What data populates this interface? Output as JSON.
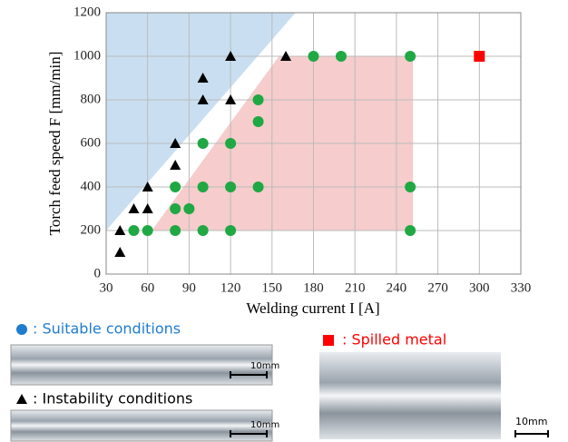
{
  "chart_data": {
    "type": "scatter",
    "xlabel": "Welding current I [A]",
    "ylabel": "Torch feed speed F [mm/min]",
    "xlim": [
      30,
      330
    ],
    "xticks": [
      30,
      60,
      90,
      120,
      150,
      180,
      210,
      240,
      270,
      300,
      330
    ],
    "ylim": [
      0,
      1200
    ],
    "yticks": [
      0,
      200,
      400,
      600,
      800,
      1000,
      1200
    ],
    "grid": true,
    "regions": [
      {
        "color": "#c9dff1",
        "x": [
          30,
          30,
          167
        ],
        "y": [
          200,
          1200,
          1200
        ]
      },
      {
        "color": "#f6cccc",
        "x": [
          63,
          155,
          252,
          252
        ],
        "y": [
          200,
          1000,
          1000,
          200
        ]
      }
    ],
    "series": [
      {
        "name": ": Instability conditions",
        "marker": "triangle",
        "color": "#000000",
        "legend_color": "#000000",
        "x": [
          40,
          40,
          50,
          60,
          60,
          80,
          80,
          100,
          100,
          120,
          120,
          160
        ],
        "values": [
          100,
          200,
          300,
          300,
          400,
          500,
          600,
          800,
          900,
          800,
          1000,
          1000
        ]
      },
      {
        "name": ": Suitable conditions",
        "marker": "circle",
        "color": "#1fa843",
        "legend_color": "#1f7ccf",
        "x": [
          50,
          60,
          80,
          80,
          80,
          90,
          100,
          100,
          100,
          120,
          120,
          120,
          140,
          140,
          140,
          180,
          200,
          250,
          250,
          250
        ],
        "values": [
          200,
          200,
          200,
          300,
          400,
          300,
          200,
          400,
          600,
          200,
          400,
          600,
          400,
          700,
          800,
          1000,
          1000,
          1000,
          400,
          200
        ]
      },
      {
        "name": ": Spilled metal",
        "marker": "square",
        "color": "#ff0000",
        "legend_color": "#ff0000",
        "x": [
          300
        ],
        "values": [
          1000
        ]
      }
    ],
    "scale_labels": [
      "10mm",
      "10mm",
      "10mm"
    ]
  }
}
